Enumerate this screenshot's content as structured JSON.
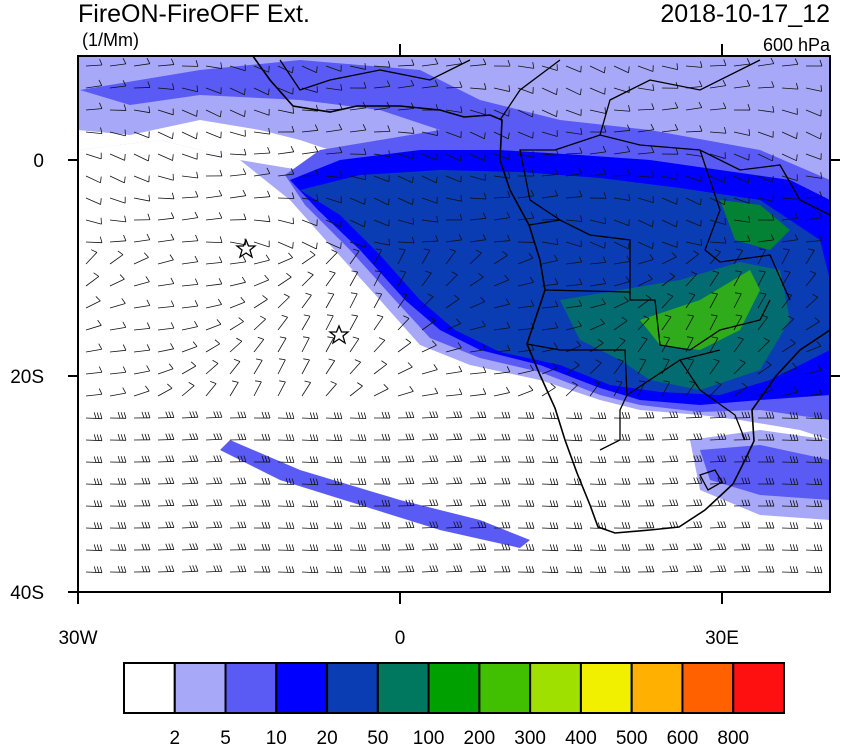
{
  "header": {
    "title": "FireON-FireOFF Ext.",
    "units": "(1/Mm)",
    "datetime": "2018-10-17_12",
    "level": "600 hPa"
  },
  "axes": {
    "y_labels": [
      "0",
      "20S",
      "40S"
    ],
    "x_labels": [
      "30W",
      "0",
      "30E"
    ]
  },
  "colorbar": {
    "colors": [
      "#ffffff",
      "#a8a8f8",
      "#5a5af5",
      "#0000ff",
      "#0a3cb4",
      "#007860",
      "#00a000",
      "#40c000",
      "#a0e000",
      "#f0f000",
      "#ffb000",
      "#ff6000",
      "#ff1010"
    ],
    "labels": [
      2,
      5,
      10,
      20,
      50,
      100,
      200,
      300,
      400,
      500,
      600,
      800
    ]
  }
}
